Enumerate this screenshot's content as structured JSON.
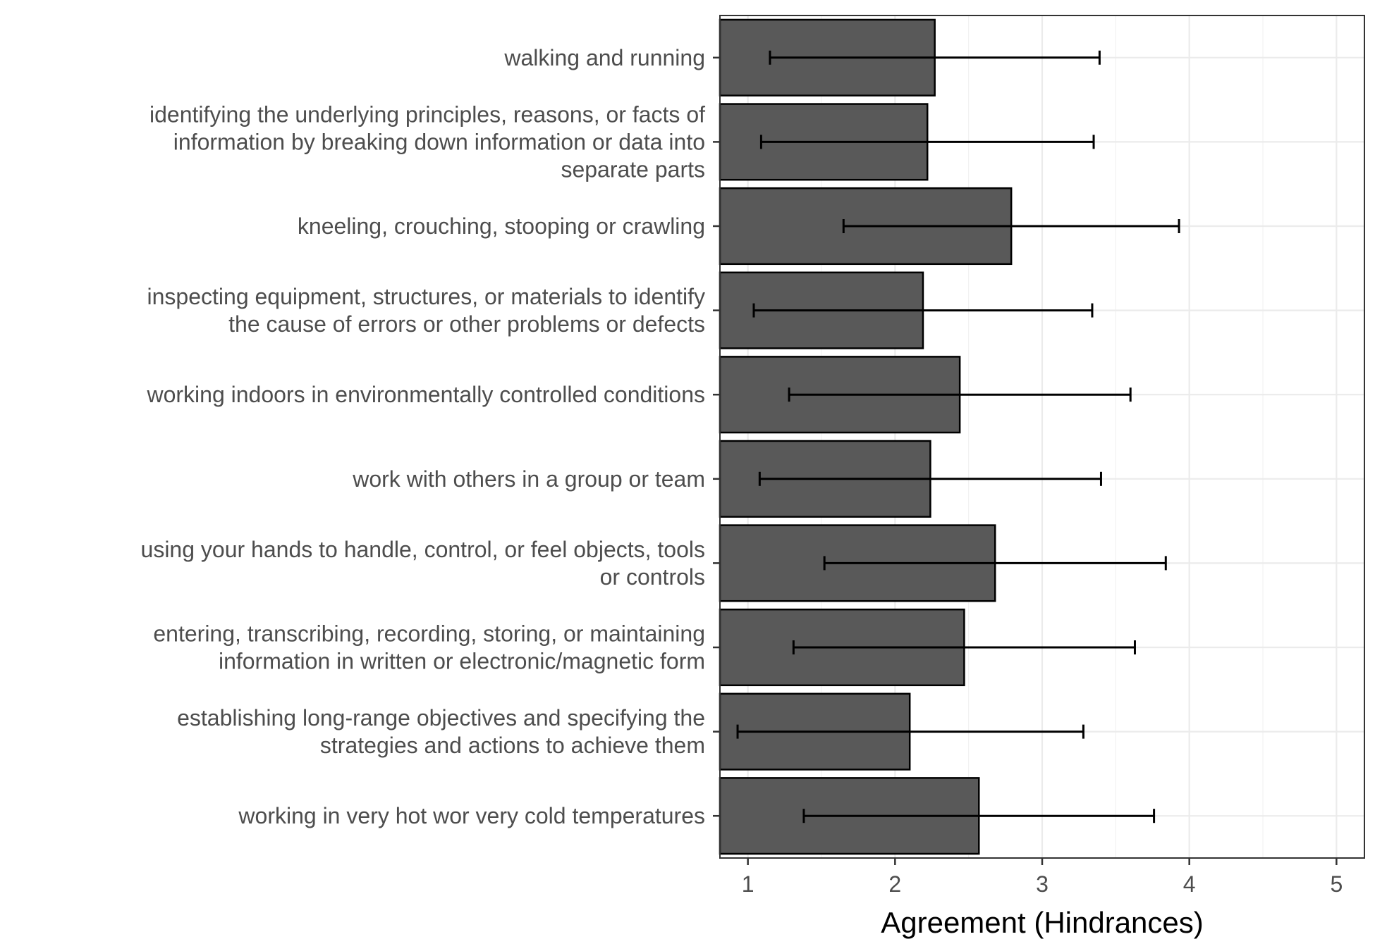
{
  "chart_data": {
    "type": "bar",
    "orientation": "horizontal",
    "xlabel": "Agreement (Hindrances)",
    "ylabel": "",
    "xlim": [
      0.81,
      5.19
    ],
    "xticks": [
      1,
      2,
      3,
      4,
      5
    ],
    "xtick_labels": [
      "1",
      "2",
      "3",
      "4",
      "5"
    ],
    "grid": true,
    "bar_color": "#595959",
    "categories": [
      {
        "label_lines": [
          "walking and running"
        ],
        "value": 2.27,
        "err_low": 1.15,
        "err_high": 3.39
      },
      {
        "label_lines": [
          "identifying the underlying principles, reasons, or facts of",
          "information by breaking down information or data into",
          "separate parts"
        ],
        "value": 2.22,
        "err_low": 1.09,
        "err_high": 3.35
      },
      {
        "label_lines": [
          "kneeling, crouching, stooping or crawling"
        ],
        "value": 2.79,
        "err_low": 1.65,
        "err_high": 3.93
      },
      {
        "label_lines": [
          "inspecting equipment, structures, or materials to identify",
          "the cause of errors or other problems or defects"
        ],
        "value": 2.19,
        "err_low": 1.04,
        "err_high": 3.34
      },
      {
        "label_lines": [
          "working indoors in environmentally controlled conditions"
        ],
        "value": 2.44,
        "err_low": 1.28,
        "err_high": 3.6
      },
      {
        "label_lines": [
          "work with others in a group or team"
        ],
        "value": 2.24,
        "err_low": 1.08,
        "err_high": 3.4
      },
      {
        "label_lines": [
          "using your hands to handle, control, or feel objects, tools",
          "or controls"
        ],
        "value": 2.68,
        "err_low": 1.52,
        "err_high": 3.84
      },
      {
        "label_lines": [
          "entering, transcribing, recording, storing, or maintaining",
          "information in written or electronic/magnetic form"
        ],
        "value": 2.47,
        "err_low": 1.31,
        "err_high": 3.63
      },
      {
        "label_lines": [
          "establishing long-range objectives and specifying the",
          "strategies and actions to achieve them"
        ],
        "value": 2.1,
        "err_low": 0.93,
        "err_high": 3.28
      },
      {
        "label_lines": [
          "working in very hot wor very cold temperatures"
        ],
        "value": 2.57,
        "err_low": 1.38,
        "err_high": 3.76
      }
    ]
  }
}
